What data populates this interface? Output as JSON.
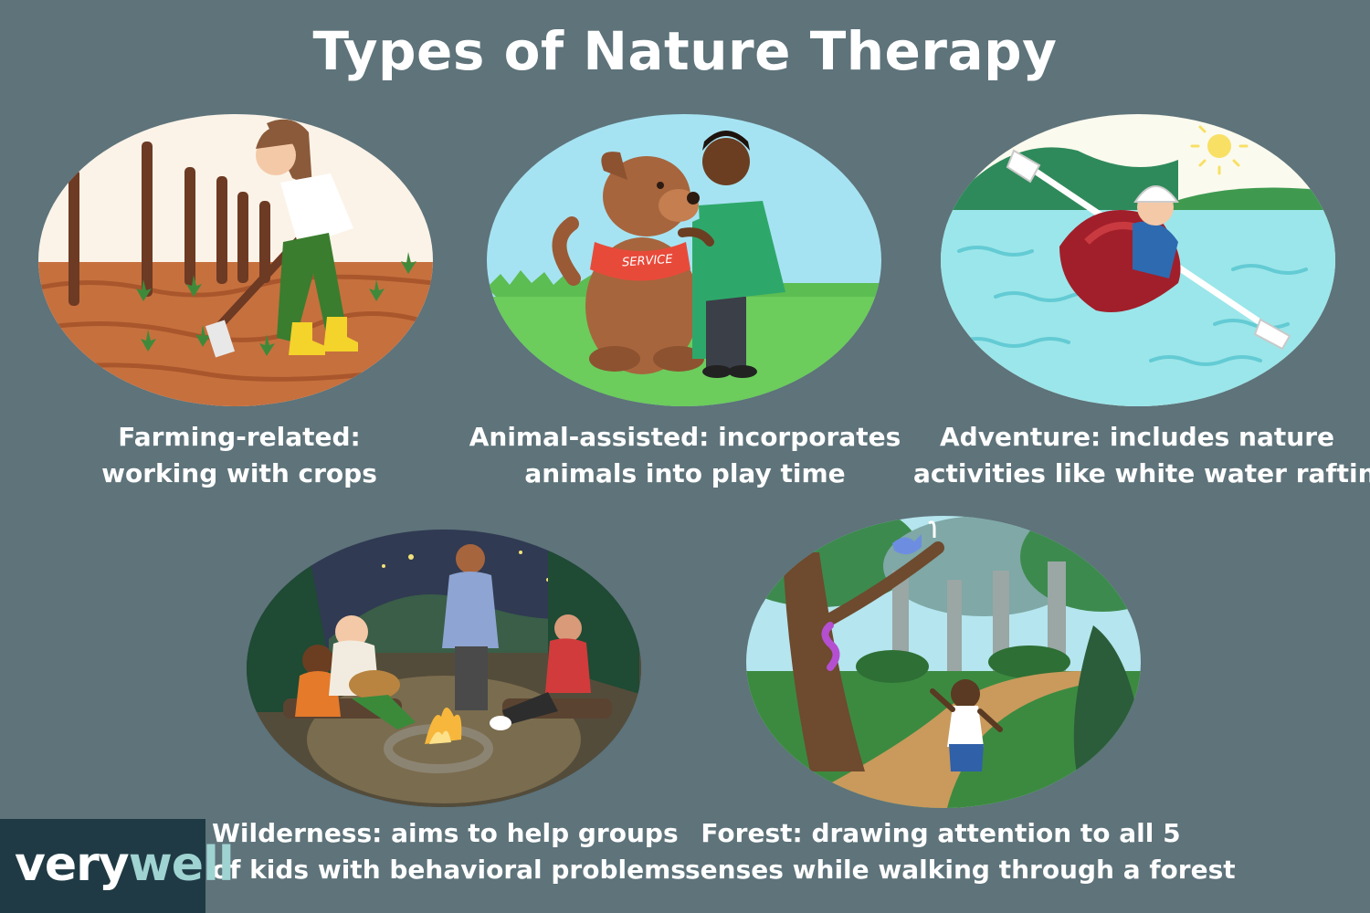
{
  "title": "Types of Nature Therapy",
  "brand": {
    "part1": "very",
    "part2": "well"
  },
  "panels": [
    {
      "key": "farming",
      "line1": "Farming-related:",
      "line2": "working with crops"
    },
    {
      "key": "animal",
      "line1": "Animal-assisted: incorporates",
      "line2": "animals into play time",
      "vest_text": "SERVICE"
    },
    {
      "key": "adventure",
      "line1": "Adventure: includes nature",
      "line2": "activities like white water rafting"
    },
    {
      "key": "wilderness",
      "line1": "Wilderness: aims to help groups",
      "line2": "of kids with behavioral problems"
    },
    {
      "key": "forest",
      "line1": "Forest: drawing attention to all 5",
      "line2": "senses while walking through a forest"
    }
  ],
  "colors": {
    "background": "#5e737a",
    "caption_text": "#ffffff",
    "brand_bg": "#1f3a44",
    "brand_accent": "#9fd3d2"
  }
}
